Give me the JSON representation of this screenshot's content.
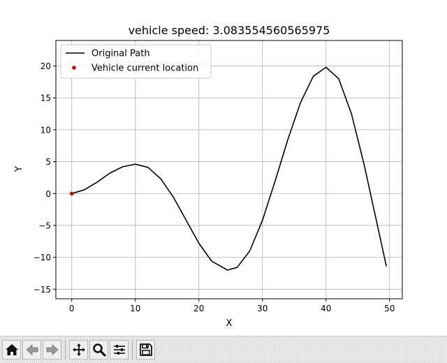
{
  "chart_data": {
    "type": "line",
    "title": "vehicle speed: 3.083554560565975",
    "xlabel": "X",
    "ylabel": "Y",
    "xlim": [
      -2.5,
      52
    ],
    "ylim": [
      -16.5,
      24
    ],
    "xticks": [
      0,
      10,
      20,
      30,
      40,
      50
    ],
    "yticks": [
      -15,
      -10,
      -5,
      0,
      5,
      10,
      15,
      20
    ],
    "grid": true,
    "legend_placement": "top-left",
    "series": [
      {
        "name": "Original Path",
        "color": "#000000",
        "x": [
          0,
          2,
          4,
          6,
          8,
          10,
          12,
          14,
          16,
          18,
          20,
          22,
          24.5,
          26,
          28,
          30,
          32,
          34,
          36,
          38,
          40,
          42,
          44,
          46,
          48,
          49.5
        ],
        "y": [
          0,
          0.6,
          1.8,
          3.2,
          4.2,
          4.6,
          4.1,
          2.3,
          -0.6,
          -4.2,
          -7.8,
          -10.6,
          -12.0,
          -11.6,
          -9.0,
          -4.2,
          2.0,
          8.5,
          14.3,
          18.4,
          19.8,
          18.0,
          12.5,
          4.5,
          -4.6,
          -11.4
        ]
      },
      {
        "name": "Vehicle current location",
        "color": "#cc0000",
        "marker": "dot",
        "x": [
          0
        ],
        "y": [
          0
        ]
      }
    ]
  },
  "toolbar": {
    "buttons": [
      {
        "name": "home-button",
        "icon": "home-icon"
      },
      {
        "name": "back-button",
        "icon": "arrow-left-icon"
      },
      {
        "name": "forward-button",
        "icon": "arrow-right-icon"
      },
      {
        "name": "pan-button",
        "icon": "move-icon"
      },
      {
        "name": "zoom-button",
        "icon": "magnifier-icon"
      },
      {
        "name": "configure-subplots-button",
        "icon": "sliders-icon"
      },
      {
        "name": "save-button",
        "icon": "floppy-disk-icon"
      }
    ]
  }
}
